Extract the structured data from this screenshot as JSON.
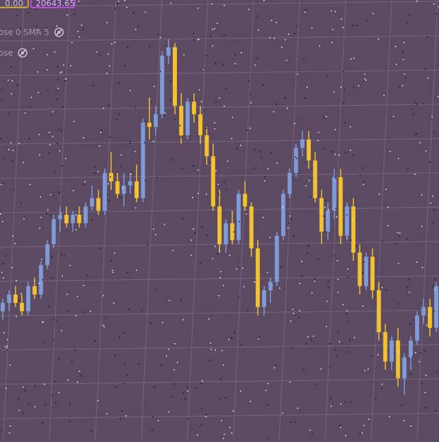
{
  "header": {
    "value_chip": "0.00",
    "price_chip": "20643.65"
  },
  "indicators": [
    {
      "label": "ose 0 SMA 5",
      "icon": "eye-off-icon"
    },
    {
      "label": "ose",
      "icon": "eye-off-icon"
    }
  ],
  "colors": {
    "background": "#5c4a63",
    "grid": "#756580",
    "up": "#7f9bd6",
    "down": "#f2c230"
  },
  "chart_data": {
    "type": "candlestick",
    "grid": true,
    "candles": [
      {
        "o": 4,
        "h": 7,
        "l": 2,
        "c": 6
      },
      {
        "o": 6,
        "h": 9,
        "l": 4,
        "c": 8
      },
      {
        "o": 8,
        "h": 10,
        "l": 5,
        "c": 6
      },
      {
        "o": 6,
        "h": 8,
        "l": 3,
        "c": 4
      },
      {
        "o": 4,
        "h": 11,
        "l": 3,
        "c": 10
      },
      {
        "o": 10,
        "h": 12,
        "l": 7,
        "c": 8
      },
      {
        "o": 8,
        "h": 16,
        "l": 7,
        "c": 15
      },
      {
        "o": 15,
        "h": 21,
        "l": 14,
        "c": 20
      },
      {
        "o": 20,
        "h": 27,
        "l": 19,
        "c": 26
      },
      {
        "o": 26,
        "h": 29,
        "l": 23,
        "c": 27
      },
      {
        "o": 27,
        "h": 29,
        "l": 24,
        "c": 25
      },
      {
        "o": 25,
        "h": 28,
        "l": 23,
        "c": 27
      },
      {
        "o": 27,
        "h": 29,
        "l": 24,
        "c": 25
      },
      {
        "o": 25,
        "h": 30,
        "l": 24,
        "c": 29
      },
      {
        "o": 29,
        "h": 34,
        "l": 28,
        "c": 31
      },
      {
        "o": 31,
        "h": 33,
        "l": 27,
        "c": 28
      },
      {
        "o": 28,
        "h": 38,
        "l": 27,
        "c": 37
      },
      {
        "o": 37,
        "h": 42,
        "l": 33,
        "c": 35
      },
      {
        "o": 35,
        "h": 37,
        "l": 31,
        "c": 32
      },
      {
        "o": 32,
        "h": 37,
        "l": 29,
        "c": 34
      },
      {
        "o": 34,
        "h": 37,
        "l": 32,
        "c": 35
      },
      {
        "o": 35,
        "h": 39,
        "l": 30,
        "c": 31
      },
      {
        "o": 31,
        "h": 50,
        "l": 30,
        "c": 49
      },
      {
        "o": 49,
        "h": 55,
        "l": 45,
        "c": 48
      },
      {
        "o": 48,
        "h": 53,
        "l": 46,
        "c": 51
      },
      {
        "o": 51,
        "h": 66,
        "l": 50,
        "c": 65
      },
      {
        "o": 65,
        "h": 69,
        "l": 63,
        "c": 67
      },
      {
        "o": 67,
        "h": 68,
        "l": 51,
        "c": 53
      },
      {
        "o": 53,
        "h": 56,
        "l": 44,
        "c": 46
      },
      {
        "o": 46,
        "h": 55,
        "l": 45,
        "c": 54
      },
      {
        "o": 54,
        "h": 56,
        "l": 49,
        "c": 51
      },
      {
        "o": 51,
        "h": 53,
        "l": 44,
        "c": 46
      },
      {
        "o": 46,
        "h": 48,
        "l": 39,
        "c": 41
      },
      {
        "o": 41,
        "h": 44,
        "l": 28,
        "c": 29
      },
      {
        "o": 29,
        "h": 33,
        "l": 18,
        "c": 20
      },
      {
        "o": 20,
        "h": 26,
        "l": 18,
        "c": 25
      },
      {
        "o": 25,
        "h": 28,
        "l": 20,
        "c": 21
      },
      {
        "o": 21,
        "h": 33,
        "l": 20,
        "c": 32
      },
      {
        "o": 32,
        "h": 35,
        "l": 28,
        "c": 29
      },
      {
        "o": 29,
        "h": 30,
        "l": 17,
        "c": 19
      },
      {
        "o": 19,
        "h": 21,
        "l": 3,
        "c": 5
      },
      {
        "o": 5,
        "h": 10,
        "l": 3,
        "c": 9
      },
      {
        "o": 9,
        "h": 12,
        "l": 6,
        "c": 11
      },
      {
        "o": 11,
        "h": 23,
        "l": 10,
        "c": 22
      },
      {
        "o": 22,
        "h": 33,
        "l": 21,
        "c": 32
      },
      {
        "o": 32,
        "h": 38,
        "l": 31,
        "c": 37
      },
      {
        "o": 37,
        "h": 44,
        "l": 36,
        "c": 43
      },
      {
        "o": 43,
        "h": 47,
        "l": 41,
        "c": 45
      },
      {
        "o": 45,
        "h": 47,
        "l": 38,
        "c": 40
      },
      {
        "o": 40,
        "h": 42,
        "l": 30,
        "c": 31
      },
      {
        "o": 31,
        "h": 33,
        "l": 20,
        "c": 23
      },
      {
        "o": 23,
        "h": 30,
        "l": 21,
        "c": 28
      },
      {
        "o": 28,
        "h": 38,
        "l": 26,
        "c": 36
      },
      {
        "o": 36,
        "h": 38,
        "l": 20,
        "c": 22
      },
      {
        "o": 22,
        "h": 30,
        "l": 21,
        "c": 29
      },
      {
        "o": 29,
        "h": 31,
        "l": 16,
        "c": 18
      },
      {
        "o": 18,
        "h": 20,
        "l": 8,
        "c": 10
      },
      {
        "o": 10,
        "h": 18,
        "l": 9,
        "c": 17
      },
      {
        "o": 17,
        "h": 19,
        "l": 7,
        "c": 9
      },
      {
        "o": 9,
        "h": 11,
        "l": -3,
        "c": -1
      },
      {
        "o": -1,
        "h": 1,
        "l": -10,
        "c": -8
      },
      {
        "o": -8,
        "h": -2,
        "l": -10,
        "c": -3
      },
      {
        "o": -3,
        "h": 0,
        "l": -14,
        "c": -12
      },
      {
        "o": -12,
        "h": -6,
        "l": -16,
        "c": -7
      },
      {
        "o": -7,
        "h": -2,
        "l": -10,
        "c": -3
      },
      {
        "o": -3,
        "h": 4,
        "l": -4,
        "c": 3
      },
      {
        "o": 3,
        "h": 7,
        "l": 1,
        "c": 5
      },
      {
        "o": 5,
        "h": 7,
        "l": -2,
        "c": 0
      },
      {
        "o": 0,
        "h": 11,
        "l": -1,
        "c": 10
      }
    ]
  }
}
